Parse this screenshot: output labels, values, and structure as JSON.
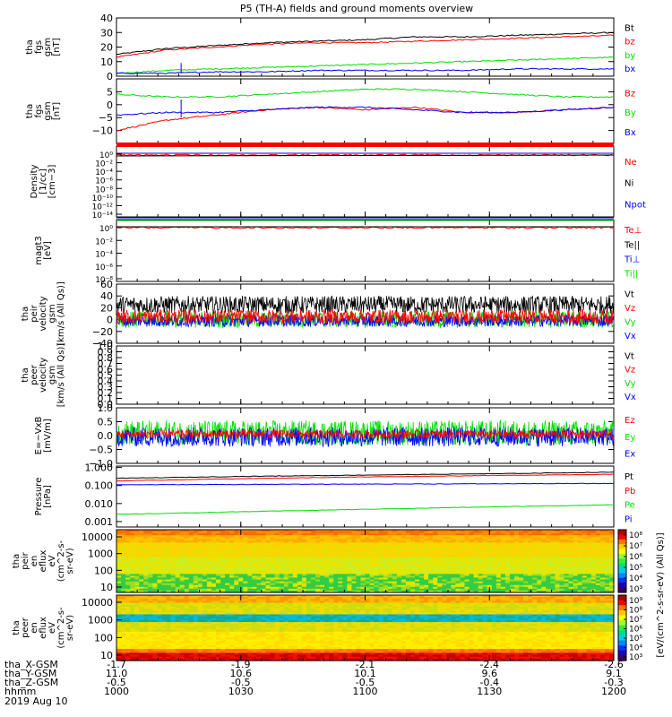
{
  "title": "P5 (TH-A) fields and ground moments overview",
  "x_ticks": [
    "1000",
    "1030",
    "1100",
    "1130",
    "1200"
  ],
  "ephemeris": {
    "rows": [
      {
        "label": "tha_X-GSM",
        "values": [
          "-1.7",
          "-1.9",
          "-2.1",
          "-2.4",
          "-2.6"
        ]
      },
      {
        "label": "tha_Y-GSM",
        "values": [
          "11.0",
          "10.6",
          "10.1",
          "9.6",
          "9.1"
        ]
      },
      {
        "label": "tha_Z-GSM",
        "values": [
          "-0.5",
          "-0.5",
          "-0.5",
          "-0.4",
          "-0.3"
        ]
      },
      {
        "label": "hhmm",
        "values": [
          "1000",
          "1030",
          "1100",
          "1130",
          "1200"
        ]
      }
    ],
    "date": "2019 Aug 10"
  },
  "colors": {
    "black": "#000000",
    "red": "#ff0000",
    "green": "#00dd00",
    "blue": "#0000ff"
  },
  "chart_data": [
    {
      "type": "line",
      "panel": "fgs_gsm_total",
      "ylabel": [
        "tha",
        "fgs",
        "gsm",
        "[nT]"
      ],
      "ylim": [
        0,
        40
      ],
      "yticks": [
        {
          "v": 0,
          "t": "0"
        },
        {
          "v": 10,
          "t": "10"
        },
        {
          "v": 20,
          "t": "20"
        },
        {
          "v": 30,
          "t": "30"
        },
        {
          "v": 40,
          "t": "40"
        }
      ],
      "x": [
        0,
        0.1,
        0.2,
        0.3,
        0.4,
        0.5,
        0.6,
        0.7,
        0.8,
        0.9,
        1.0
      ],
      "series": [
        {
          "name": "Bt",
          "color": "#000000",
          "values": [
            15,
            19,
            21,
            23,
            24,
            25,
            27,
            27,
            28,
            29,
            30
          ]
        },
        {
          "name": "bz",
          "color": "#ff0000",
          "values": [
            13,
            18,
            20,
            22,
            23,
            23,
            24,
            25,
            26,
            27,
            28
          ]
        },
        {
          "name": "by",
          "color": "#00dd00",
          "values": [
            2,
            4,
            5,
            6,
            7,
            8,
            9,
            10,
            11,
            12,
            13
          ]
        },
        {
          "name": "bx",
          "color": "#0000ff",
          "values": [
            2,
            2,
            3,
            3,
            4,
            4,
            4,
            4,
            5,
            5,
            5
          ]
        }
      ]
    },
    {
      "type": "line",
      "panel": "fgs_gsm_components",
      "ylabel": [
        "tha",
        "fgs",
        "gsm",
        "[nT]"
      ],
      "ylim": [
        -15,
        10
      ],
      "yticks": [
        {
          "v": -10,
          "t": "−10"
        },
        {
          "v": -5,
          "t": "−5"
        },
        {
          "v": 0,
          "t": "0"
        },
        {
          "v": 5,
          "t": "5"
        }
      ],
      "x": [
        0,
        0.1,
        0.2,
        0.3,
        0.4,
        0.5,
        0.6,
        0.7,
        0.8,
        0.9,
        1.0
      ],
      "series": [
        {
          "name": "Bz",
          "color": "#ff0000",
          "values": [
            -10,
            -6,
            -4,
            -2,
            -1,
            -2,
            -1,
            -3,
            -3,
            -2,
            -1
          ]
        },
        {
          "name": "By",
          "color": "#00dd00",
          "values": [
            4,
            3,
            3,
            4,
            5,
            6,
            6,
            5,
            4,
            3,
            3
          ]
        },
        {
          "name": "Bx",
          "color": "#0000ff",
          "values": [
            -4,
            -3,
            -3,
            -2,
            -1,
            -1,
            -2,
            -3,
            -3,
            -2,
            -1
          ]
        }
      ]
    },
    {
      "type": "line",
      "panel": "density",
      "ylabel": [
        "Density",
        "[1/cc]",
        "[cm−3]"
      ],
      "yticks": [
        "10⁰",
        "10⁻²",
        "10⁻⁴",
        "10⁻⁶",
        "10⁻⁸",
        "10⁻¹⁰",
        "10⁻¹²",
        "10⁻¹⁴"
      ],
      "series": [
        {
          "name": "Ne",
          "color": "#ff0000"
        },
        {
          "name": "Ni",
          "color": "#000000"
        },
        {
          "name": "Npot",
          "color": "#0000ff"
        }
      ]
    },
    {
      "type": "line",
      "panel": "temperature",
      "ylabel": [
        "magt3",
        "[eV]"
      ],
      "yticks": [
        "10⁰",
        "10⁻²",
        "10⁻⁴",
        "10⁻⁶",
        "10⁻⁸"
      ],
      "series": [
        {
          "name": "Te⊥",
          "color": "#ff0000"
        },
        {
          "name": "Te||",
          "color": "#000000"
        },
        {
          "name": "Ti⊥",
          "color": "#0000ff"
        },
        {
          "name": "Ti||",
          "color": "#00dd00"
        }
      ]
    },
    {
      "type": "line",
      "panel": "peir_velocity",
      "ylabel": [
        "tha",
        "peir",
        "velocity",
        "gsm",
        "[km/s (All Qs)]"
      ],
      "ylim": [
        -40,
        60
      ],
      "yticks": [
        {
          "v": -40,
          "t": "−40"
        },
        {
          "v": -20,
          "t": "−20"
        },
        {
          "v": 0,
          "t": "0"
        },
        {
          "v": 20,
          "t": "20"
        },
        {
          "v": 40,
          "t": "40"
        },
        {
          "v": 60,
          "t": "60"
        }
      ],
      "series": [
        {
          "name": "Vt",
          "color": "#000000",
          "level": 25,
          "amp": 15
        },
        {
          "name": "Vz",
          "color": "#ff0000",
          "level": 5,
          "amp": 12
        },
        {
          "name": "Vy",
          "color": "#00dd00",
          "level": 0,
          "amp": 14
        },
        {
          "name": "Vx",
          "color": "#0000ff",
          "level": -2,
          "amp": 10
        }
      ]
    },
    {
      "type": "line",
      "panel": "peer_velocity",
      "ylabel": [
        "tha",
        "peer",
        "velocity",
        "gsm",
        "[km/s (All Qs)]"
      ],
      "ylim": [
        0,
        1
      ],
      "yticks": [
        {
          "v": 0,
          "t": "0.0"
        },
        {
          "v": 0.1,
          "t": "0.1"
        },
        {
          "v": 0.2,
          "t": "0.2"
        },
        {
          "v": 0.3,
          "t": "0.3"
        },
        {
          "v": 0.4,
          "t": "0.4"
        },
        {
          "v": 0.5,
          "t": "0.5"
        },
        {
          "v": 0.6,
          "t": "0.6"
        },
        {
          "v": 0.7,
          "t": "0.7"
        },
        {
          "v": 0.8,
          "t": "0.8"
        },
        {
          "v": 0.9,
          "t": "0.9"
        },
        {
          "v": 1.0,
          "t": "1.0"
        }
      ],
      "series": [
        {
          "name": "Vt",
          "color": "#000000"
        },
        {
          "name": "Vz",
          "color": "#ff0000"
        },
        {
          "name": "Vy",
          "color": "#00dd00"
        },
        {
          "name": "Vx",
          "color": "#0000ff"
        }
      ]
    },
    {
      "type": "line",
      "panel": "electric_field",
      "ylabel": [
        "E=−VxB",
        "[mV/m]"
      ],
      "ylim": [
        -1,
        1
      ],
      "yticks": [
        {
          "v": -1,
          "t": "−1.0"
        },
        {
          "v": -0.5,
          "t": "−0.5"
        },
        {
          "v": 0,
          "t": "0.0"
        },
        {
          "v": 0.5,
          "t": "0.5"
        },
        {
          "v": 1,
          "t": "1.0"
        }
      ],
      "series": [
        {
          "name": "Ez",
          "color": "#ff0000",
          "level": 0.05,
          "amp": 0.15
        },
        {
          "name": "Ey",
          "color": "#00dd00",
          "level": 0.1,
          "amp": 0.45
        },
        {
          "name": "Ex",
          "color": "#0000ff",
          "level": -0.05,
          "amp": 0.35
        }
      ]
    },
    {
      "type": "line",
      "panel": "pressure",
      "ylabel": [
        "Pressure",
        "[nPa]"
      ],
      "ylim": [
        0.0005,
        1.2
      ],
      "yticks": [
        {
          "v": 1.0,
          "t": "1.000"
        },
        {
          "v": 0.1,
          "t": "0.100"
        },
        {
          "v": 0.01,
          "t": "0.010"
        },
        {
          "v": 0.001,
          "t": "0.001"
        }
      ],
      "x": [
        0,
        0.25,
        0.5,
        0.75,
        1.0
      ],
      "series": [
        {
          "name": "Pt",
          "color": "#000000",
          "values": [
            0.25,
            0.32,
            0.38,
            0.45,
            0.55
          ]
        },
        {
          "name": "Pb",
          "color": "#ff0000",
          "values": [
            0.18,
            0.24,
            0.3,
            0.36,
            0.42
          ]
        },
        {
          "name": "Pe",
          "color": "#00dd00",
          "values": [
            0.0025,
            0.0035,
            0.0048,
            0.0065,
            0.0085
          ]
        },
        {
          "name": "Pi",
          "color": "#0000ff",
          "values": [
            0.11,
            0.115,
            0.12,
            0.125,
            0.13
          ]
        }
      ]
    },
    {
      "type": "heatmap",
      "panel": "peir_eflux",
      "ylabel": [
        "tha",
        "peir",
        "en",
        "eflux",
        "eV",
        "(cm^2-s-",
        "sr-eV)"
      ],
      "yticks": [
        "10000",
        "1000",
        "100",
        "10"
      ]
    },
    {
      "type": "heatmap",
      "panel": "peer_eflux",
      "ylabel": [
        "tha",
        "peer",
        "en",
        "eflux",
        "eV",
        "(cm^2-s-",
        "sr-eV)"
      ],
      "yticks": [
        "10000",
        "1000",
        "100",
        "10"
      ]
    }
  ],
  "colorbar_top": {
    "ticks": [
      "10⁸",
      "10⁷",
      "10⁶",
      "10⁵",
      "10⁴",
      "10³"
    ]
  },
  "colorbar_bottom": {
    "ticks": [
      "10⁹",
      "10⁸",
      "10⁷",
      "10⁶",
      "10⁵",
      "10⁴",
      "10³"
    ]
  },
  "colorbar_label": "[eV/(cm^2-s-sr-eV) (All Qs)]"
}
